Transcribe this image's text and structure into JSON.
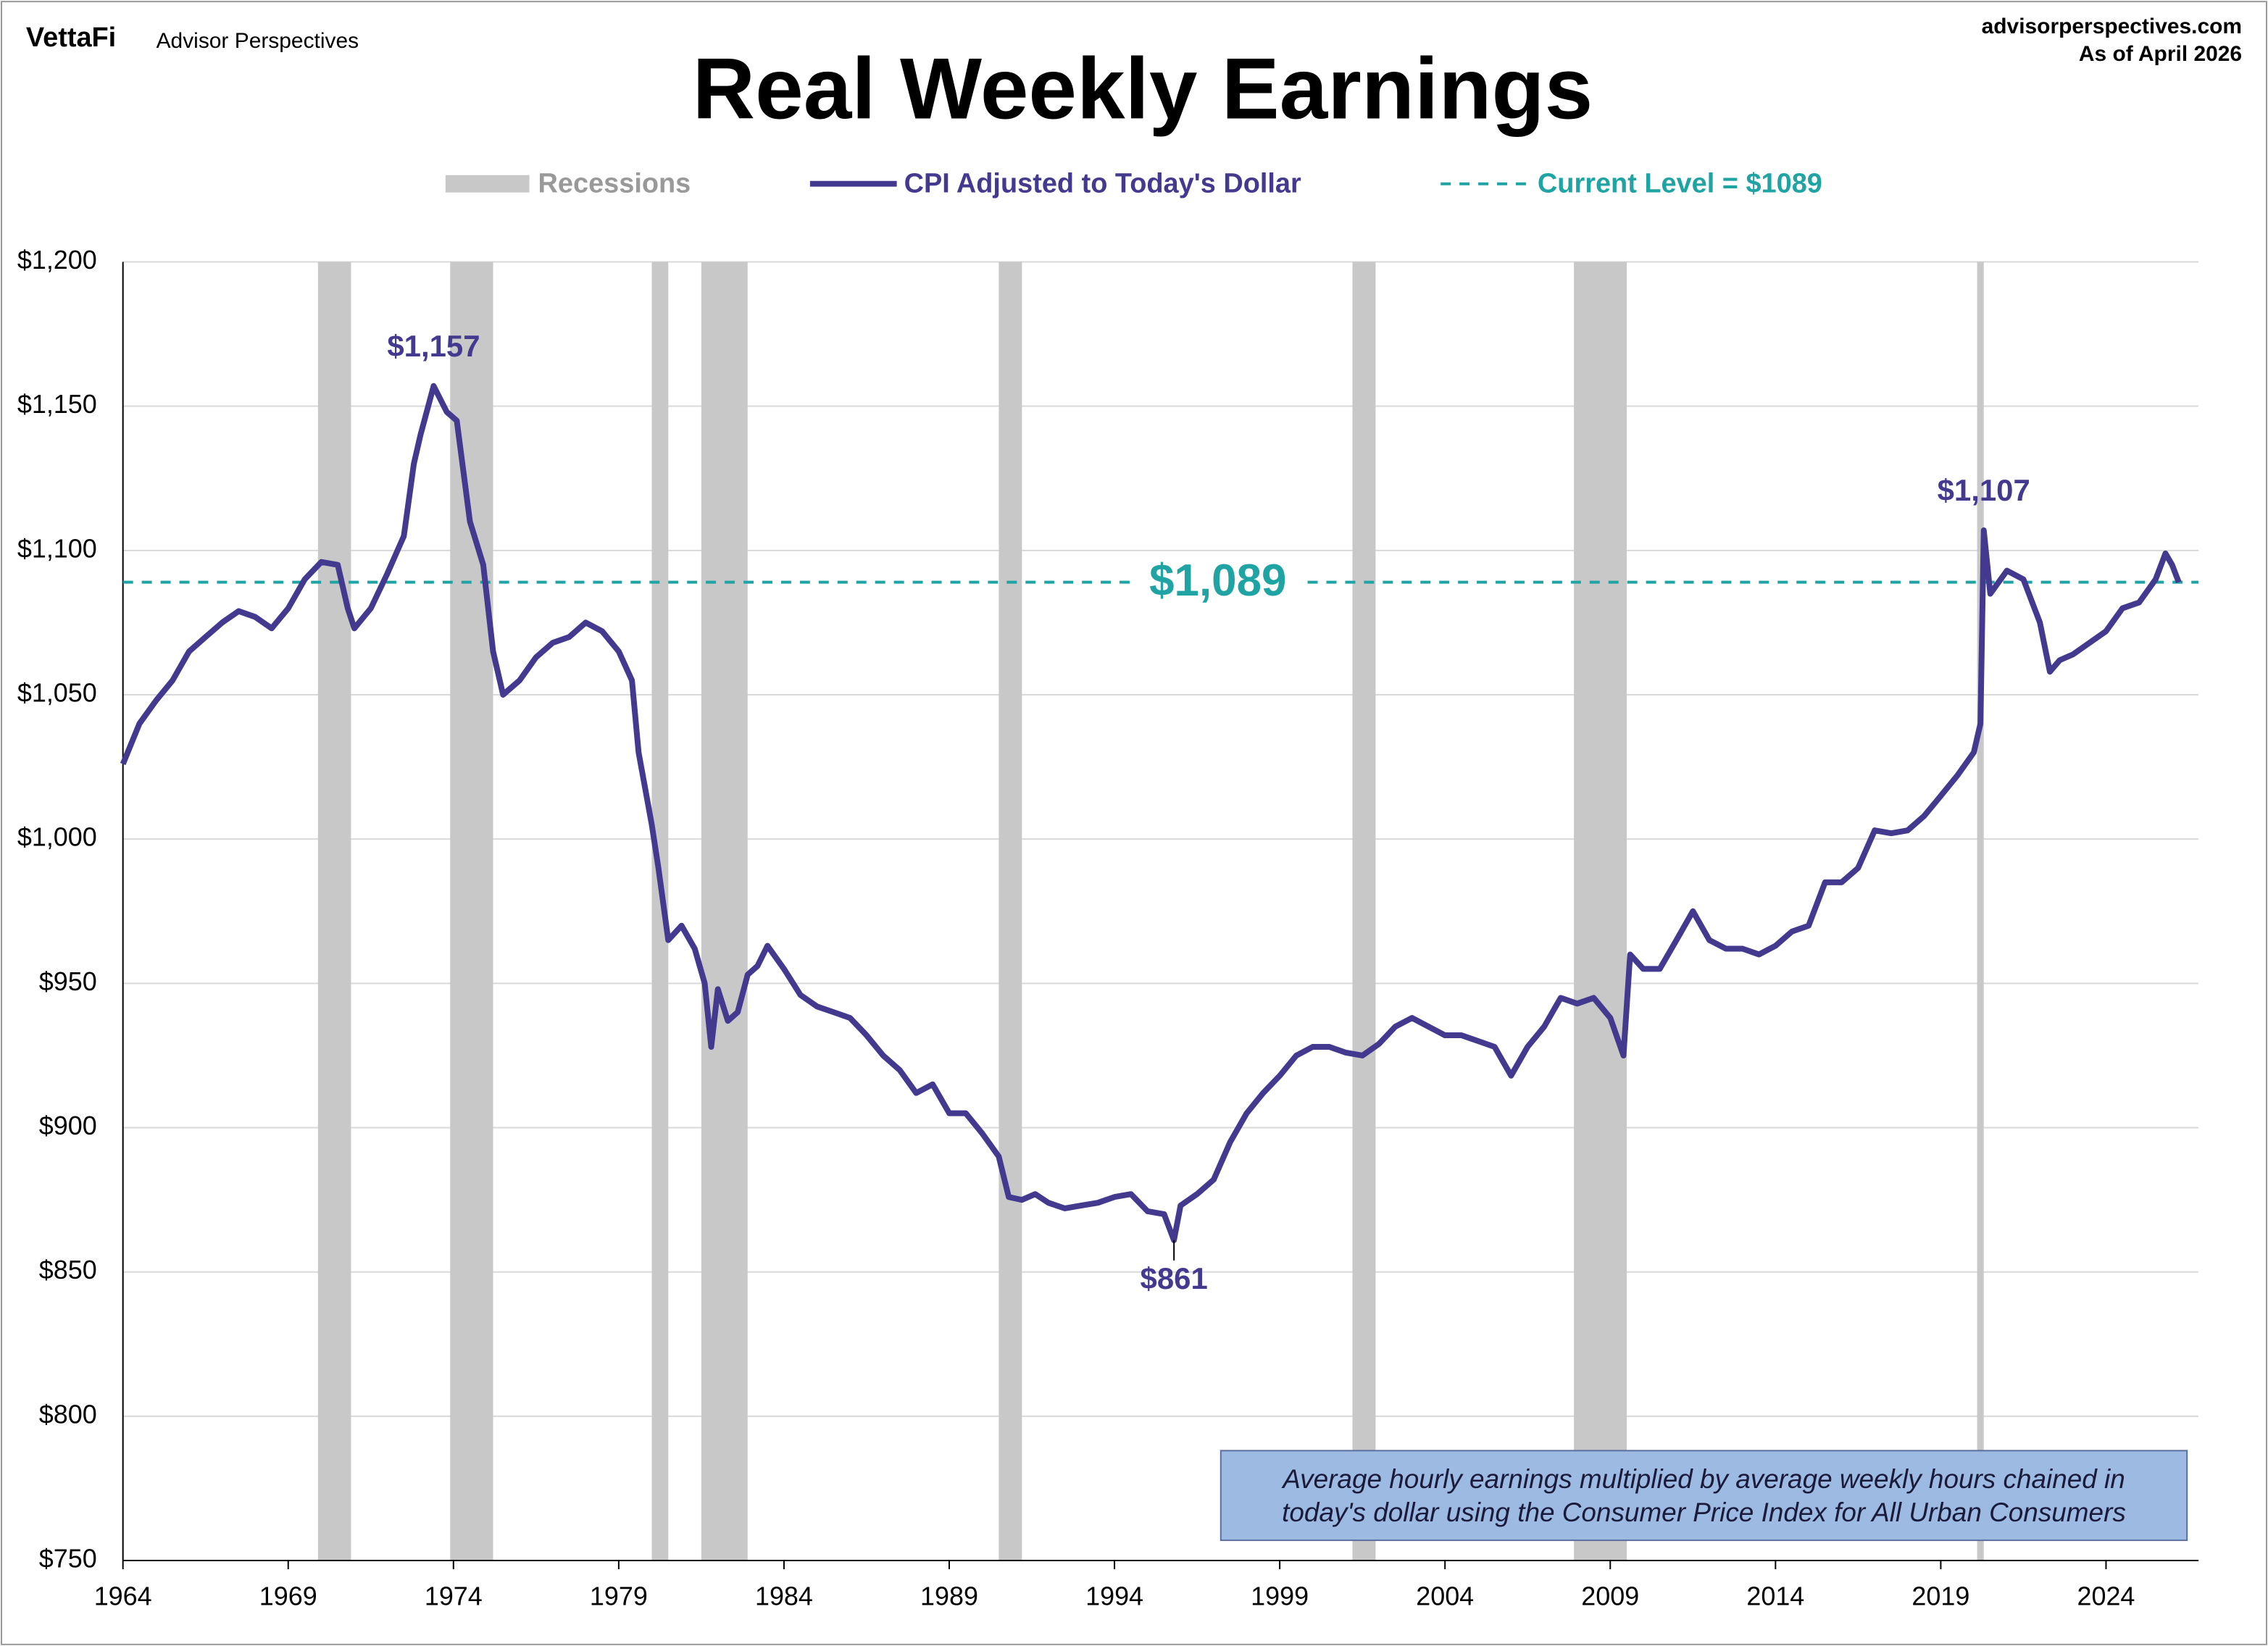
{
  "brand": "VettaFi",
  "publisher": "Advisor Perspectives",
  "website": "advisorperspectives.com",
  "as_of": "As of April 2026",
  "chart_data": {
    "type": "line",
    "title": "Real Weekly Earnings",
    "xlim": [
      1964,
      2026.8
    ],
    "xticks": [
      1964,
      1969,
      1974,
      1979,
      1984,
      1989,
      1994,
      1999,
      2004,
      2009,
      2014,
      2019,
      2024
    ],
    "ylim": [
      750,
      1200
    ],
    "yticks": [
      {
        "value": 750,
        "label": "$750"
      },
      {
        "value": 800,
        "label": "$800"
      },
      {
        "value": 850,
        "label": "$850"
      },
      {
        "value": 900,
        "label": "$900"
      },
      {
        "value": 950,
        "label": "$950"
      },
      {
        "value": 1000,
        "label": "$1,000"
      },
      {
        "value": 1050,
        "label": "$1,050"
      },
      {
        "value": 1100,
        "label": "$1,100"
      },
      {
        "value": 1150,
        "label": "$1,150"
      },
      {
        "value": 1200,
        "label": "$1,200"
      }
    ],
    "grid": true,
    "recessions": {
      "name": "Recessions",
      "color": "#c8c8c8",
      "periods": [
        [
          1969.9,
          1970.9
        ],
        [
          1973.9,
          1975.2
        ],
        [
          1980.0,
          1980.5
        ],
        [
          1981.5,
          1982.9
        ],
        [
          1990.5,
          1991.2
        ],
        [
          2001.2,
          2001.9
        ],
        [
          2007.9,
          2009.5
        ],
        [
          2020.1,
          2020.3
        ]
      ]
    },
    "reference_line": {
      "name": "Current Level = $1089",
      "value": 1089,
      "label": "$1,089",
      "color": "#1fa3a3"
    },
    "series": [
      {
        "name": "CPI Adjusted to Today's Dollar",
        "color": "#43398f",
        "x": [
          1964.0,
          1964.5,
          1965,
          1965.5,
          1966,
          1966.5,
          1967,
          1967.5,
          1968,
          1968.5,
          1969,
          1969.5,
          1970,
          1970.5,
          1970.8,
          1971,
          1971.5,
          1972,
          1972.5,
          1972.8,
          1973,
          1973.4,
          1973.8,
          1974.1,
          1974.5,
          1974.9,
          1975.2,
          1975.5,
          1976,
          1976.5,
          1977,
          1977.5,
          1978,
          1978.5,
          1979,
          1979.4,
          1979.6,
          1980,
          1980.2,
          1980.5,
          1980.9,
          1981.3,
          1981.6,
          1981.8,
          1982,
          1982.3,
          1982.6,
          1982.9,
          1983.2,
          1983.5,
          1984,
          1984.5,
          1985,
          1985.5,
          1986,
          1986.5,
          1987,
          1987.5,
          1988,
          1988.5,
          1989,
          1989.5,
          1990,
          1990.5,
          1990.8,
          1991.2,
          1991.6,
          1992,
          1992.5,
          1993,
          1993.5,
          1994,
          1994.5,
          1995,
          1995.5,
          1995.8,
          1996,
          1996.5,
          1997,
          1997.5,
          1998,
          1998.5,
          1999,
          1999.5,
          2000,
          2000.5,
          2001,
          2001.5,
          2002,
          2002.5,
          2003,
          2003.5,
          2004,
          2004.5,
          2005,
          2005.5,
          2006,
          2006.5,
          2007,
          2007.5,
          2008,
          2008.5,
          2009,
          2009.4,
          2009.6,
          2010,
          2010.5,
          2011,
          2011.5,
          2012,
          2012.5,
          2013,
          2013.5,
          2014,
          2014.5,
          2015,
          2015.5,
          2016,
          2016.5,
          2017,
          2017.5,
          2018,
          2018.5,
          2019,
          2019.5,
          2020,
          2020.2,
          2020.3,
          2020.5,
          2021,
          2021.5,
          2022,
          2022.3,
          2022.6,
          2023,
          2023.5,
          2024,
          2024.5,
          2025,
          2025.5,
          2025.8,
          2026,
          2026.2
        ],
        "values": [
          1026,
          1040,
          1048,
          1055,
          1065,
          1070,
          1075,
          1079,
          1077,
          1073,
          1080,
          1090,
          1096,
          1095,
          1080,
          1073,
          1080,
          1092,
          1105,
          1130,
          1140,
          1157,
          1148,
          1145,
          1110,
          1095,
          1065,
          1050,
          1055,
          1063,
          1068,
          1070,
          1075,
          1072,
          1065,
          1055,
          1030,
          1005,
          990,
          965,
          970,
          962,
          950,
          928,
          948,
          937,
          940,
          953,
          956,
          963,
          955,
          946,
          942,
          940,
          938,
          932,
          925,
          920,
          912,
          915,
          905,
          905,
          898,
          890,
          876,
          875,
          877,
          874,
          872,
          873,
          874,
          876,
          877,
          871,
          870,
          861,
          873,
          877,
          882,
          895,
          905,
          912,
          918,
          925,
          928,
          928,
          926,
          925,
          929,
          935,
          938,
          935,
          932,
          932,
          930,
          928,
          918,
          928,
          935,
          945,
          943,
          945,
          938,
          925,
          960,
          955,
          955,
          965,
          975,
          965,
          962,
          962,
          960,
          963,
          968,
          970,
          985,
          985,
          990,
          1003,
          1002,
          1003,
          1008,
          1015,
          1022,
          1030,
          1040,
          1107,
          1085,
          1093,
          1090,
          1075,
          1058,
          1062,
          1064,
          1068,
          1072,
          1080,
          1082,
          1090,
          1099,
          1095,
          1089
        ]
      }
    ],
    "annotations": [
      {
        "text": "$1,157",
        "x": 1973.4,
        "y": 1157
      },
      {
        "text": "$1,107",
        "x": 2020.3,
        "y": 1107
      },
      {
        "text": "$861",
        "x": 1995.8,
        "y": 861
      }
    ],
    "note": [
      "Average hourly earnings multiplied by average weekly hours chained in",
      "today's dollar using the  Consumer Price Index for All Urban Consumers"
    ]
  }
}
